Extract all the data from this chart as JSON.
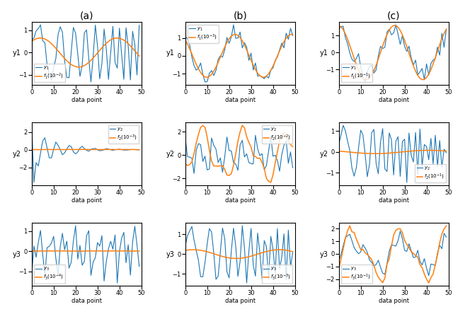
{
  "title_a": "(a)",
  "title_b": "(b)",
  "title_c": "(c)",
  "xlabel": "data point",
  "n_points": 50,
  "blue_color": "#1f77b4",
  "orange_color": "#ff7f0e",
  "linewidth_blue": 0.8,
  "linewidth_orange": 1.1,
  "fig_width": 6.4,
  "fig_height": 4.44,
  "legend_locs": [
    [
      "lower left",
      "upper right",
      "lower left"
    ],
    [
      "upper left",
      "upper right",
      "lower right"
    ],
    [
      "lower left",
      "lower right",
      "lower left"
    ]
  ],
  "legend_blue": [
    "$y_1$",
    "$y_2$",
    "$y_3$"
  ],
  "legend_orange": [
    [
      "$f_1(10^{-2})$",
      "$f_2(10^{-3})$",
      "$f_3(10^{-4})$"
    ],
    [
      "$f_1(10^{-3})$",
      "$f_2(10^{-2})$",
      "$f_3(10^{-3})$"
    ],
    [
      "$f_1(10^{-1})$",
      "$f_2(10^{-1})$",
      "$f_3(10^{-1})$"
    ]
  ],
  "ylabels": [
    [
      "y1",
      "y2",
      "y3"
    ],
    [
      "y1",
      "y2",
      "y3"
    ],
    [
      "y1",
      "y2",
      "y3"
    ]
  ]
}
